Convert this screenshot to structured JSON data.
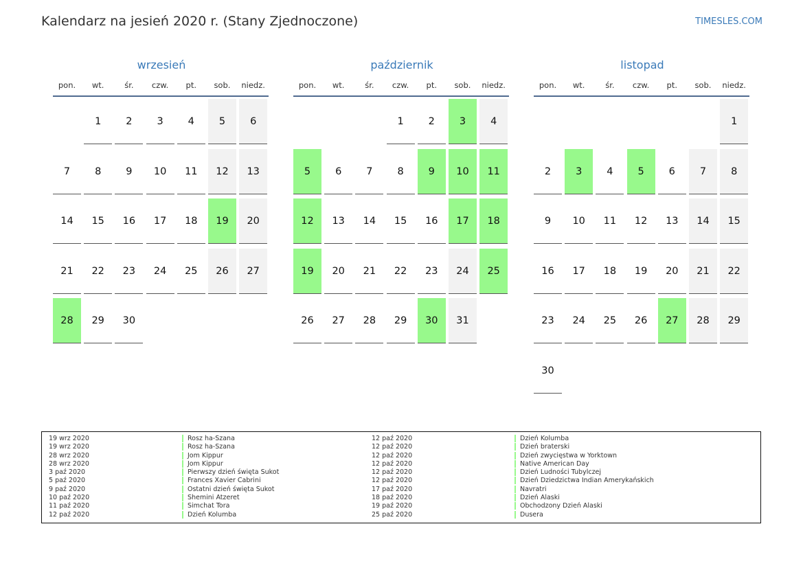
{
  "header": {
    "title": "Kalendarz na jesień 2020 r. (Stany Zjednoczone)",
    "brand": "TIMESLES.COM"
  },
  "weekdays": [
    "pon.",
    "wt.",
    "śr.",
    "czw.",
    "pt.",
    "sob.",
    "niedz."
  ],
  "colors": {
    "accent": "#3a7ab8",
    "holiday": "#98f98c",
    "weekend": "#f2f2f2",
    "rule": "#4f6a8f"
  },
  "months": [
    {
      "name": "wrzesień",
      "start_weekday": 1,
      "days": 30,
      "holidays": [
        19,
        28
      ]
    },
    {
      "name": "październik",
      "start_weekday": 3,
      "days": 31,
      "holidays": [
        3,
        5,
        9,
        10,
        11,
        12,
        17,
        18,
        19,
        25,
        30
      ]
    },
    {
      "name": "listopad",
      "start_weekday": 6,
      "days": 30,
      "holidays": [
        3,
        5,
        27
      ]
    }
  ],
  "legend": {
    "left": [
      {
        "date": "19 wrz 2020",
        "name": "Rosz ha-Szana"
      },
      {
        "date": "19 wrz 2020",
        "name": "Rosz ha-Szana"
      },
      {
        "date": "28 wrz 2020",
        "name": "Jom Kippur"
      },
      {
        "date": "28 wrz 2020",
        "name": "Jom Kippur"
      },
      {
        "date": "3 paź 2020",
        "name": "Pierwszy dzień święta Sukot"
      },
      {
        "date": "5 paź 2020",
        "name": "Frances Xavier Cabrini"
      },
      {
        "date": "9 paź 2020",
        "name": "Ostatni dzień święta Sukot"
      },
      {
        "date": "10 paź 2020",
        "name": "Shemini Atzeret"
      },
      {
        "date": "11 paź 2020",
        "name": "Simchat Tora"
      },
      {
        "date": "12 paź 2020",
        "name": "Dzień Kolumba"
      }
    ],
    "right": [
      {
        "date": "12 paź 2020",
        "name": "Dzień Kolumba"
      },
      {
        "date": "12 paź 2020",
        "name": "Dzień braterski"
      },
      {
        "date": "12 paź 2020",
        "name": "Dzień zwycięstwa w Yorktown"
      },
      {
        "date": "12 paź 2020",
        "name": "Native American Day"
      },
      {
        "date": "12 paź 2020",
        "name": "Dzień Ludności Tubylczej"
      },
      {
        "date": "12 paź 2020",
        "name": "Dzień Dziedzictwa Indian Amerykańskich"
      },
      {
        "date": "17 paź 2020",
        "name": "Navratri"
      },
      {
        "date": "18 paź 2020",
        "name": "Dzień Alaski"
      },
      {
        "date": "19 paź 2020",
        "name": "Obchodzony Dzień Alaski"
      },
      {
        "date": "25 paź 2020",
        "name": "Dusera"
      }
    ]
  }
}
